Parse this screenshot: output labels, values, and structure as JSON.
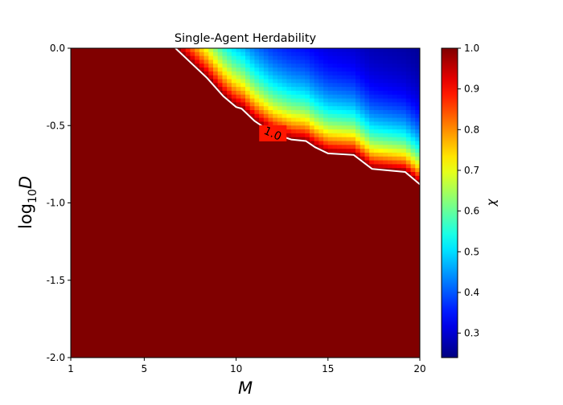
{
  "chart_data": {
    "type": "heatmap",
    "title": "Single-Agent Herdability",
    "xlabel": "M",
    "ylabel": "log",
    "ylabel_sub": "10",
    "ylabel_tail": "D",
    "xlim": [
      1,
      20
    ],
    "ylim": [
      -2.0,
      0.0
    ],
    "x_ticks": [
      1,
      5,
      10,
      15,
      20
    ],
    "x_tick_labels": [
      "1",
      "5",
      "10",
      "15",
      "20"
    ],
    "y_ticks": [
      0.0,
      -0.5,
      -1.0,
      -1.5,
      -2.0
    ],
    "y_tick_labels": [
      "0.0",
      "-0.5",
      "-1.0",
      "-1.5",
      "-2.0"
    ],
    "colorbar": {
      "label": "χ",
      "colormap": "jet",
      "vmin": 0.24,
      "vmax": 1.0,
      "ticks": [
        0.3,
        0.4,
        0.5,
        0.6,
        0.7,
        0.8,
        0.9,
        1.0
      ],
      "tick_labels": [
        "0.3",
        "0.4",
        "0.5",
        "0.6",
        "0.7",
        "0.8",
        "0.9",
        "1.0"
      ]
    },
    "contour": {
      "level": 1.0,
      "label": "1.0",
      "color": "#ffffff",
      "points": [
        [
          6.7,
          0.0
        ],
        [
          7.5,
          -0.09
        ],
        [
          8.4,
          -0.19
        ],
        [
          9.3,
          -0.31
        ],
        [
          10.0,
          -0.38
        ],
        [
          10.3,
          -0.39
        ],
        [
          11.0,
          -0.47
        ],
        [
          12.0,
          -0.55
        ],
        [
          13.0,
          -0.59
        ],
        [
          13.8,
          -0.6
        ],
        [
          14.3,
          -0.64
        ],
        [
          15.0,
          -0.68
        ],
        [
          16.4,
          -0.69
        ],
        [
          17.4,
          -0.78
        ],
        [
          19.2,
          -0.8
        ],
        [
          20.0,
          -0.88
        ]
      ]
    },
    "grid": false
  }
}
